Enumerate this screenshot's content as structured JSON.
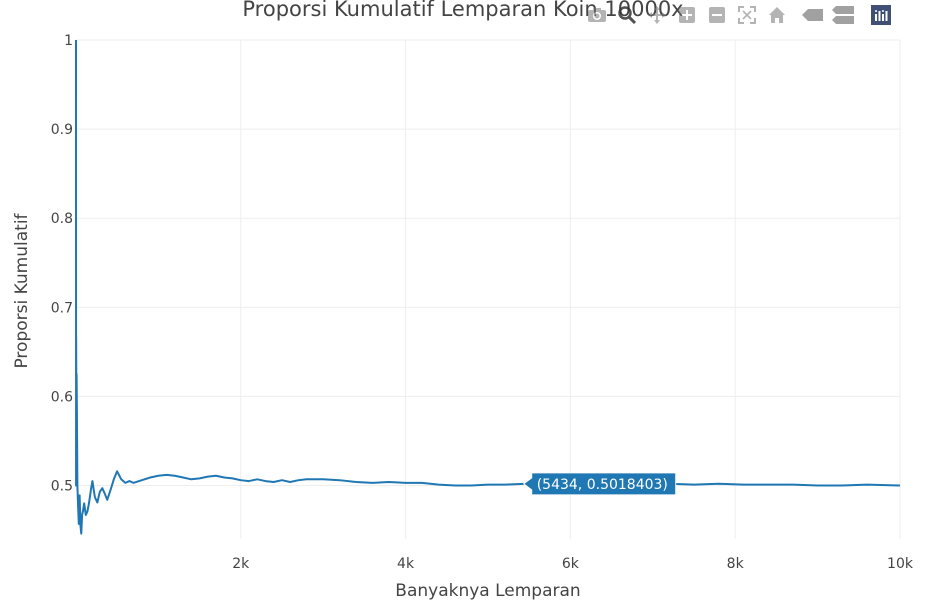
{
  "chart_data": {
    "type": "line",
    "title": "Proporsi Kumulatif Lemparan Koin 10000x",
    "xlabel": "Banyaknya Lemparan",
    "ylabel": "Proporsi Kumulatif",
    "xlim": [
      1,
      10000
    ],
    "ylim": [
      0.44,
      1.0
    ],
    "x_ticks": [
      2000,
      4000,
      6000,
      8000,
      10000
    ],
    "x_tick_labels": [
      "2k",
      "4k",
      "6k",
      "8k",
      "10k"
    ],
    "y_ticks": [
      0.5,
      0.6,
      0.7,
      0.8,
      0.9,
      1
    ],
    "y_tick_labels": [
      "0.5",
      "0.6",
      "0.7",
      "0.8",
      "0.9",
      "1"
    ],
    "grid": true,
    "line_color": "#1f77b4",
    "series": [
      {
        "x": [
          1,
          2,
          3,
          5,
          8,
          12,
          18,
          25,
          35,
          45,
          55,
          65,
          75,
          85,
          100,
          120,
          140,
          160,
          180,
          200,
          230,
          260,
          290,
          320,
          350,
          380,
          420,
          460,
          500,
          550,
          600,
          650,
          700,
          800,
          900,
          1000,
          1100,
          1200,
          1300,
          1400,
          1500,
          1600,
          1700,
          1800,
          1900,
          2000,
          2100,
          2200,
          2300,
          2400,
          2500,
          2600,
          2700,
          2800,
          2900,
          3000,
          3200,
          3400,
          3600,
          3800,
          4000,
          4200,
          4400,
          4600,
          4800,
          5000,
          5200,
          5434,
          5700,
          6000,
          6300,
          6600,
          6900,
          7200,
          7500,
          7800,
          8100,
          8400,
          8700,
          9000,
          9300,
          9600,
          10000
        ],
        "y": [
          1.0,
          0.5,
          0.667,
          0.6,
          0.625,
          0.583,
          0.5,
          0.48,
          0.457,
          0.489,
          0.455,
          0.446,
          0.467,
          0.471,
          0.48,
          0.467,
          0.471,
          0.481,
          0.494,
          0.505,
          0.487,
          0.481,
          0.493,
          0.497,
          0.491,
          0.484,
          0.495,
          0.507,
          0.516,
          0.507,
          0.503,
          0.505,
          0.503,
          0.506,
          0.509,
          0.511,
          0.512,
          0.511,
          0.509,
          0.507,
          0.508,
          0.51,
          0.511,
          0.509,
          0.508,
          0.506,
          0.505,
          0.507,
          0.505,
          0.504,
          0.506,
          0.504,
          0.506,
          0.507,
          0.507,
          0.507,
          0.506,
          0.504,
          0.503,
          0.504,
          0.503,
          0.503,
          0.501,
          0.5,
          0.5,
          0.501,
          0.501,
          0.5018403,
          0.503,
          0.503,
          0.502,
          0.502,
          0.501,
          0.502,
          0.501,
          0.502,
          0.501,
          0.501,
          0.501,
          0.5,
          0.5,
          0.501,
          0.5
        ]
      }
    ],
    "hover": {
      "x": 5434,
      "y": 0.5018403,
      "label": "(5434, 0.5018403)"
    }
  },
  "modebar": {
    "icons": [
      "camera-icon",
      "zoom-icon",
      "pan-icon",
      "zoom-in-icon",
      "zoom-out-icon",
      "autoscale-icon",
      "reset-axes-icon",
      "spike-lines-icon",
      "compare-data-icon",
      "plotly-logo-icon"
    ]
  }
}
